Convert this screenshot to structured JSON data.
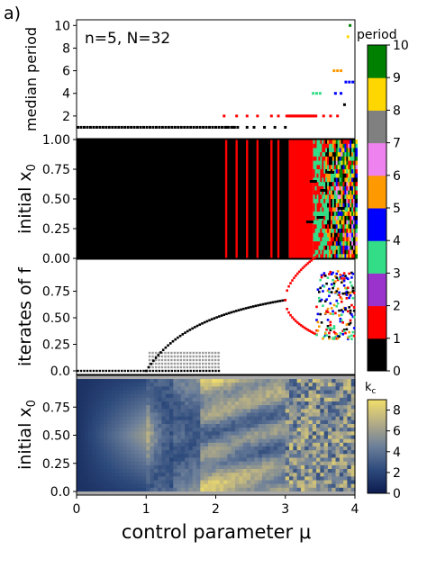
{
  "figure": {
    "panel_label": "a)",
    "annotation": "n=5, N=32",
    "xlabel": "control parameter μ"
  },
  "chart_data": [
    {
      "type": "scatter",
      "panel": "median period",
      "ylabel": "median period",
      "xlim": [
        0,
        4
      ],
      "ylim": [
        0,
        10.5
      ],
      "yticks": [
        2,
        4,
        6,
        8,
        10
      ],
      "points_summary": [
        {
          "x_from": 0.0,
          "x_to": 2.35,
          "y": 1,
          "step": 0.05
        },
        {
          "x_from": 2.1,
          "x_to": 3.35,
          "y": 2,
          "scattered": true
        },
        {
          "x_from": 3.35,
          "x_to": 3.55,
          "y": 4
        },
        {
          "x_from": 3.7,
          "x_to": 3.85,
          "y": 6
        },
        {
          "x_from": 3.85,
          "x_to": 3.98,
          "y": 5
        },
        {
          "x": 3.9,
          "y": 9
        },
        {
          "x": 3.93,
          "y": 10
        }
      ]
    },
    {
      "type": "heatmap",
      "panel": "period by initial condition",
      "ylabel": "initial x_0",
      "xlim": [
        0,
        4
      ],
      "ylim": [
        0,
        1
      ],
      "yticks": [
        0.0,
        0.25,
        0.5,
        0.75,
        1.0
      ],
      "regions": [
        {
          "x_from": 0.0,
          "x_to": 2.1,
          "period": 1
        },
        {
          "x_from": 2.1,
          "x_to": 3.05,
          "period": "mostly 1 with period-2 stripes near 2.15, 2.3, 2.45, 2.6, 2.8, 2.9"
        },
        {
          "x_from": 3.05,
          "x_to": 3.4,
          "period": 2
        },
        {
          "x_from": 3.4,
          "x_to": 3.55,
          "period": "4 / 2 alternating"
        },
        {
          "x_from": 3.55,
          "x_to": 4.0,
          "period": "mixed 4, 5, 6, 7, 9, 10"
        }
      ]
    },
    {
      "type": "scatter",
      "panel": "iterates",
      "ylabel": "iterates of f",
      "xlim": [
        0,
        4
      ],
      "ylim": [
        0,
        1
      ],
      "yticks": [
        0.0,
        0.25,
        0.5,
        0.75
      ],
      "description": "logistic-map bifurcation diagram: x* = 1 - 1/μ for μ in [1,3], period-2 branches after 3, chaotic spread after 3.57"
    },
    {
      "type": "heatmap",
      "panel": "k_c",
      "ylabel": "initial x_0",
      "xlim": [
        0,
        4
      ],
      "ylim": [
        0,
        1
      ],
      "yticks": [
        0.0,
        0.25,
        0.5,
        0.75
      ],
      "xticks": [
        0,
        1,
        2,
        3,
        4
      ],
      "colorbar_label": "k_c",
      "colorbar_ticks": [
        0,
        2,
        4,
        6,
        8
      ],
      "colorbar_range": [
        0,
        9
      ]
    }
  ],
  "period_colorbar": {
    "title": "period",
    "ticks": [
      "0",
      "1",
      "2",
      "3",
      "4",
      "5",
      "6",
      "7",
      "8",
      "9",
      "10"
    ],
    "colors": [
      "#000000",
      "#ff0000",
      "#9933cc",
      "#33dd88",
      "#0000ff",
      "#ff9900",
      "#ee82ee",
      "#808080",
      "#ffd700",
      "#008000"
    ]
  },
  "kc_colorbar": {
    "label": "k_c",
    "ticks": [
      "0",
      "2",
      "4",
      "6",
      "8"
    ],
    "colors": [
      "#0d1b4f",
      "#2d4a7c",
      "#6c7f9a",
      "#b3ac86",
      "#f3df6a"
    ]
  },
  "axis_labels": {
    "median_period_ticks": [
      "2",
      "4",
      "6",
      "8",
      "10"
    ],
    "x0_ticks_full": [
      "0.00",
      "0.25",
      "0.50",
      "0.75",
      "1.00"
    ],
    "iter_ticks": [
      "0.0",
      "0.25",
      "0.50",
      "0.75"
    ],
    "x0_ticks_kc": [
      "0.0",
      "0.25",
      "0.50",
      "0.75"
    ],
    "x_ticks": [
      "0",
      "1",
      "2",
      "3",
      "4"
    ],
    "ylabel_period": "median period",
    "ylabel_x0": "initial x",
    "ylabel_sub": "0",
    "ylabel_iter": "iterates of f"
  }
}
